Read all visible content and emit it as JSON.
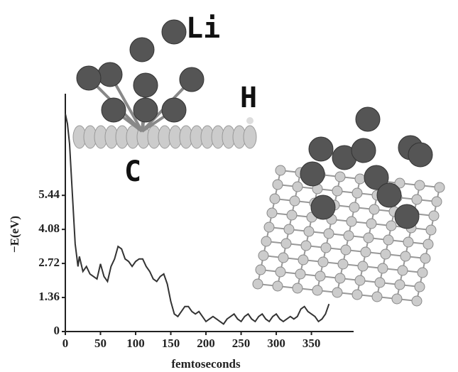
{
  "chart_data": {
    "type": "line",
    "x_label": "femtoseconds",
    "y_label": "−E(eV)",
    "annotations": [
      "Li",
      "H",
      "C"
    ],
    "xlim": [
      0,
      410
    ],
    "ylim": [
      0,
      9.5
    ],
    "xticks": [
      0,
      50,
      100,
      150,
      200,
      250,
      300,
      350
    ],
    "yticks": [
      0,
      1.36,
      2.72,
      4.08,
      5.44
    ],
    "x": [
      0,
      3,
      6,
      10,
      14,
      18,
      20,
      25,
      30,
      35,
      40,
      45,
      50,
      55,
      60,
      65,
      70,
      75,
      80,
      85,
      90,
      95,
      100,
      105,
      110,
      115,
      120,
      125,
      130,
      135,
      140,
      145,
      150,
      155,
      160,
      165,
      170,
      175,
      180,
      185,
      190,
      195,
      200,
      205,
      210,
      215,
      220,
      225,
      230,
      235,
      240,
      245,
      250,
      255,
      260,
      265,
      270,
      275,
      280,
      285,
      290,
      295,
      300,
      305,
      310,
      315,
      320,
      325,
      330,
      335,
      340,
      345,
      350,
      355,
      360,
      365,
      370,
      375
    ],
    "series": [
      {
        "color": "#333333",
        "values": [
          8.7,
          8.3,
          7.5,
          5.5,
          3.5,
          2.6,
          3.0,
          2.4,
          2.6,
          2.3,
          2.2,
          2.1,
          2.7,
          2.2,
          2.0,
          2.6,
          2.9,
          3.4,
          3.3,
          2.9,
          2.8,
          2.6,
          2.8,
          2.9,
          2.9,
          2.6,
          2.4,
          2.1,
          2.0,
          2.2,
          2.3,
          1.9,
          1.2,
          0.7,
          0.6,
          0.8,
          1.0,
          1.0,
          0.8,
          0.7,
          0.8,
          0.6,
          0.4,
          0.5,
          0.6,
          0.5,
          0.4,
          0.3,
          0.5,
          0.6,
          0.7,
          0.5,
          0.4,
          0.6,
          0.7,
          0.5,
          0.4,
          0.6,
          0.7,
          0.5,
          0.4,
          0.6,
          0.7,
          0.5,
          0.4,
          0.5,
          0.6,
          0.5,
          0.6,
          0.9,
          1.0,
          0.8,
          0.7,
          0.6,
          0.4,
          0.5,
          0.7,
          1.1
        ]
      }
    ]
  }
}
